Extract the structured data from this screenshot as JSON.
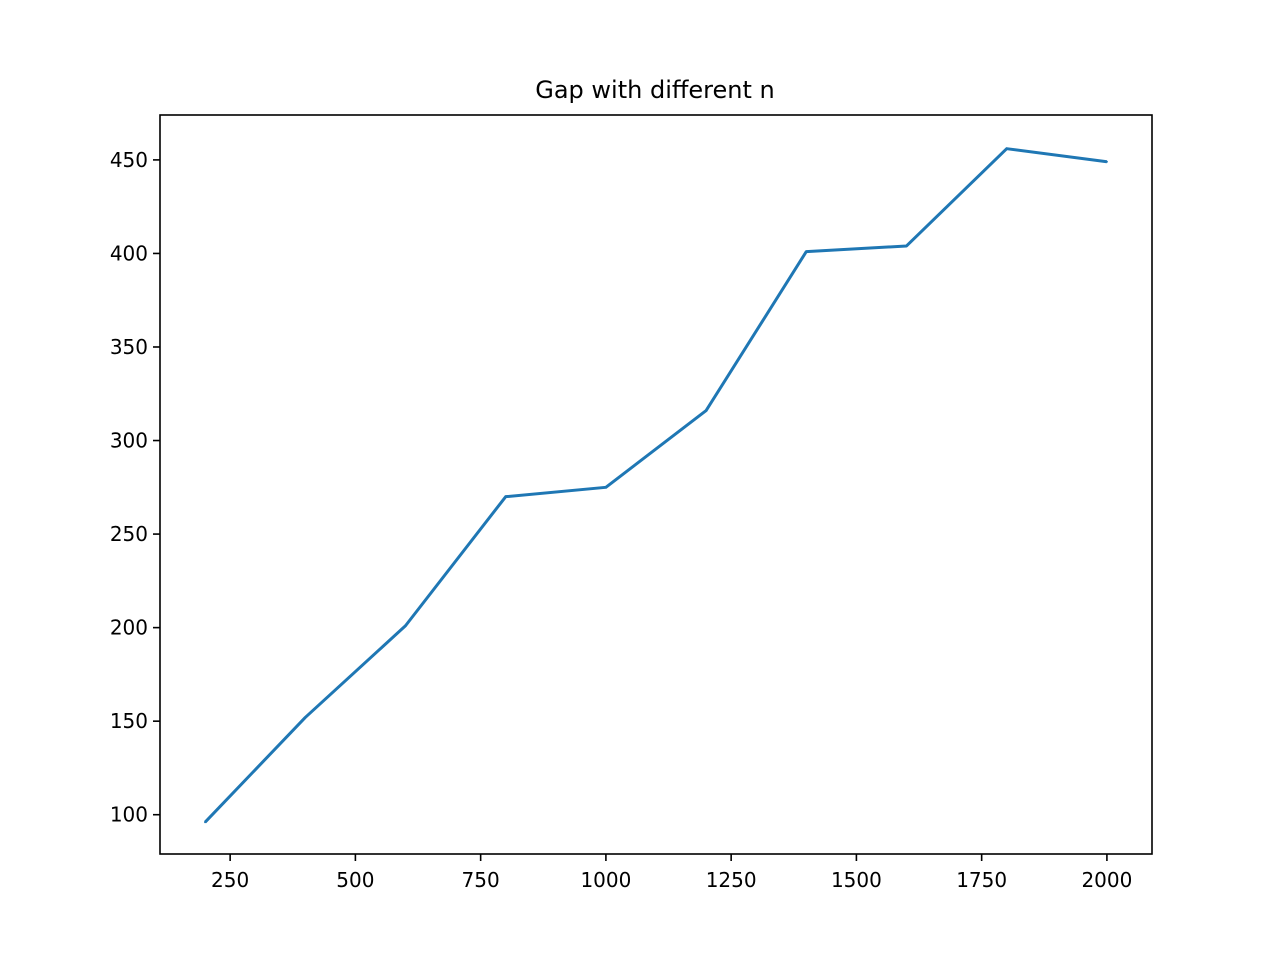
{
  "chart_data": {
    "type": "line",
    "title": "Gap with different n",
    "xlabel": "",
    "ylabel": "",
    "xlim": [
      110,
      2090
    ],
    "ylim": [
      79,
      474
    ],
    "grid": false,
    "x_ticks": [
      250,
      500,
      750,
      1000,
      1250,
      1500,
      1750,
      2000
    ],
    "y_ticks": [
      100,
      150,
      200,
      250,
      300,
      350,
      400,
      450
    ],
    "series": [
      {
        "color": "#1f77b4",
        "x": [
          200,
          400,
          600,
          800,
          1000,
          1200,
          1400,
          1600,
          1800,
          2000
        ],
        "y": [
          96,
          152,
          201,
          270,
          275,
          316,
          401,
          404,
          456,
          449
        ]
      }
    ]
  }
}
